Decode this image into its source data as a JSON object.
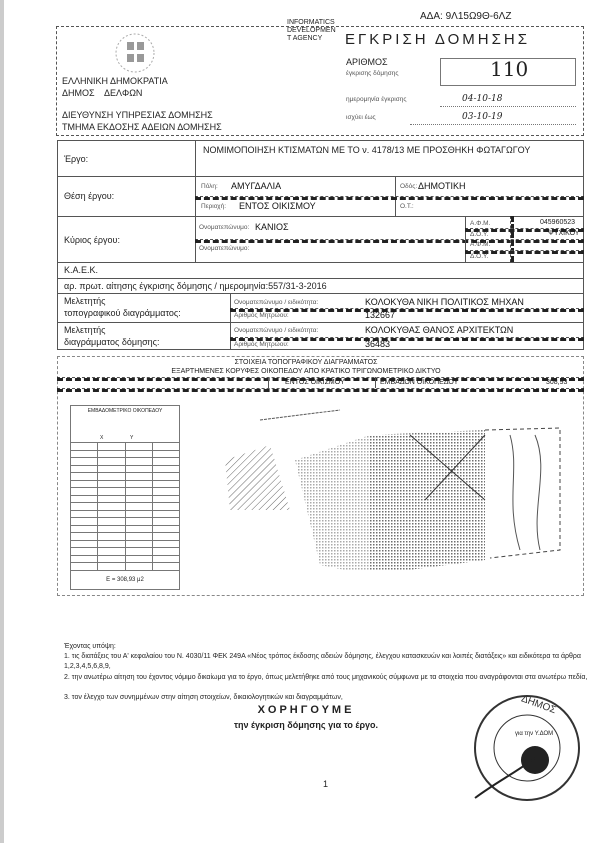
{
  "ada": "ΑΔΑ: 9Λ15Ω9Θ-6ΛΖ",
  "agency": {
    "lines": [
      "INFORMATICS",
      "DEVELOPMEN",
      "T AGENCY"
    ]
  },
  "header": {
    "country": "ΕΛΛΗΝΙΚΗ ΔΗΜΟΚΡΑΤΙΑ",
    "municipality_label": "ΔΗΜΟΣ",
    "municipality": "ΔΕΛΦΩΝ",
    "directorate": "ΔΙΕΥΘΥΝΣΗ ΥΠΗΡΕΣΙΑΣ ΔΟΜΗΣΗΣ",
    "department": "ΤΜΗΜΑ ΕΚΔΟΣΗΣ ΑΔΕΙΩΝ ΔΟΜΗΣΗΣ",
    "title": "ΕΓΚΡΙΣΗ ΔΟΜΗΣΗΣ",
    "number_label": "ΑΡΙΘΜΟΣ",
    "number_sublabel": "έγκρισης δόμησης",
    "number": "110",
    "date_label": "ημερομηνία έγκρισης",
    "date": "04-10-18",
    "valid_label": "ισχύει έως",
    "valid_until": "03-10-19"
  },
  "form": {
    "project_label": "Έργο:",
    "project": "ΝΟΜΙΜΟΠΟΙΗΣΗ  ΚΤΙΣΜΑΤΩΝ ΜΕ ΤΟ ν. 4178/13  ΜΕ ΠΡΟΣΘΗΚΗ ΦΩΤΑΓΩΓΟΥ",
    "location_label": "Θέση έργου:",
    "city_label": "Πόλη:",
    "city": "ΑΜΥΓΔΑΛΙΑ",
    "street_label": "Οδός:",
    "street": "ΔΗΜΟΤΙΚΗ",
    "area_label": "Περιοχή:",
    "area": "ΕΝΤΟΣ ΟΙΚΙΣΜΟΥ",
    "block_label": "Ο.Τ.:",
    "owner_label": "Κύριος έργου:",
    "name_label": "Ονοματεπώνυμο:",
    "owner_name": "ΚΑΝΙΟΣ",
    "afm_label": "Α.Φ.Μ.",
    "afm": "045960523",
    "doy_label": "Δ.Ο.Υ.",
    "doy": "ΨΥΧΙΚΟΥ",
    "name2_label": "Ονοματεπώνυμο:",
    "afm2_label": "Α.Φ.Μ.",
    "doy2_label": "Δ.Ο.Υ.",
    "kaek_label": "Κ.Α.Ε.Κ.",
    "application": "αρ. πρωτ. αίτησης έγκρισης δόμησης / ημερομηνία:557/31-3-2016",
    "topo_engineer_label": [
      "Μελετητής",
      "τοπογραφικού διαγράμματος:"
    ],
    "name_spec_label": "Ονοματεπώνυμο / ειδικότητα:",
    "topo_engineer": "ΚΟΛΟΚΥΘΑ ΝΙΚΗ ΠΟΛΙΤΙΚΟΣ ΜΗΧΑΝ",
    "reg_label": "Αριθμός Μητρώου:",
    "topo_reg": "132667",
    "build_engineer_label": [
      "Μελετητής",
      "διαγράμματος δόμησης:"
    ],
    "build_engineer": "ΚΟΛΟΚΥΘΑΣ ΘΑΝΟΣ ΑΡΧΙΤΕΚΤΩΝ",
    "build_reg": "36483"
  },
  "topo": {
    "title": "ΣΤΟΙΧΕΙΑ ΤΟΠΟΓΡΑΦΙΚΟΥ ΔΙΑΓΡΑΜΜΑΤΟΣ",
    "subtitle": "ΕΞΑΡΤΗΜΕΝΕΣ ΚΟΡΥΦΕΣ ΟΙΚΟΠΕΔΟΥ ΑΠΟ ΚΡΑΤΙΚΟ ΤΡΙΓΩΝΟΜΕΤΡΙΚΟ ΔΙΚΤΥΟ",
    "zone": "ΕΝΤΟΣ ΟΙΚΙΣΜΟΥ",
    "area_label": "ΕΜΒΑΔΟΝ ΟΙΚΟΠΕΔΟΥ",
    "area": "308,93",
    "table_title": "ΕΜΒΑΔΟΜΕΤΡΙΚΟ ΟΙΚΟΠΕΔΟΥ",
    "col_x": "X",
    "col_y": "Y",
    "table_total": "E = 308,93 μ2"
  },
  "body": {
    "intro": "Έχοντας υπόψη:",
    "p1": "1. τις διατάξεις του Α' κεφαλαίου του Ν. 4030/11 ΦΕΚ 249Α «Νέος τρόπος έκδοσης αδειών δόμησης, έλεγχου κατασκευών και λοιπές διατάξεις» και ειδικότερα τα άρθρα 1,2,3,4,5,6,8,9,",
    "p2": "2. την ανωτέρω αίτηση του έχοντος νόμιμο δικαίωμα για το έργο, όπως μελετήθηκε από τους μηχανικούς σύμφωνα με τα στοιχεία που αναγράφονται στα ανωτέρω πεδία,",
    "p3": "3. τον έλεγχο των συνημμένων στην αίτηση στοιχείων, δικαιολογητικών και διαγραμμάτων,",
    "grant": "ΧΟΡΗΓΟΥΜΕ",
    "grant_sub": "την έγκριση δόμησης για το έργο.",
    "page": "1"
  },
  "stamp": {
    "text": "ΔΗΜΟΣ ΔΕΛΦΩΝ",
    "signer": "για την Υ.ΔΟΜ"
  }
}
